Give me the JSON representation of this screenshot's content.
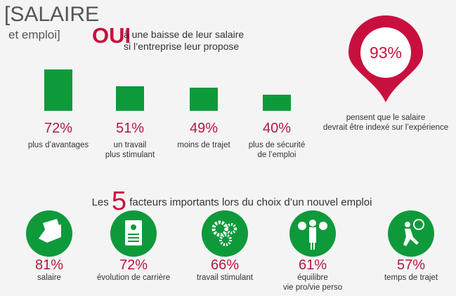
{
  "header": {
    "title": "[SALAIRE",
    "subtitle": "et emploi]"
  },
  "chart_data": {
    "type": "bar",
    "title_emphasis": "OUI",
    "title": "à une baisse de leur salaire\nsi l’entreprise leur propose",
    "categories": [
      "plus d’avantages",
      "un travail\nplus stimulant",
      "moins de trajet",
      "plus de sécurité\nde l’emploi"
    ],
    "values": [
      72,
      51,
      49,
      40
    ],
    "value_labels": [
      "72%",
      "51%",
      "49%",
      "40%"
    ],
    "color": "#0e9a3b",
    "ylim": [
      20,
      80
    ]
  },
  "highlight": {
    "value": 93,
    "value_label": "93%",
    "color": "#c8103e",
    "caption": "pensent que le salaire\ndevrait être indexé sur l’expérience"
  },
  "factors": {
    "title_start": "Les",
    "count": 5,
    "title_end": "facteurs importants lors du choix d’un nouvel emploi",
    "items": [
      {
        "value": 81,
        "value_label": "81%",
        "label": "salaire"
      },
      {
        "value": 72,
        "value_label": "72%",
        "label": "évolution de carrière"
      },
      {
        "value": 66,
        "value_label": "66%",
        "label": "travail stimulant"
      },
      {
        "value": 61,
        "value_label": "61%",
        "label": "équilibre\nvie pro/vie perso"
      },
      {
        "value": 57,
        "value_label": "57%",
        "label": "temps de trajet"
      }
    ]
  }
}
